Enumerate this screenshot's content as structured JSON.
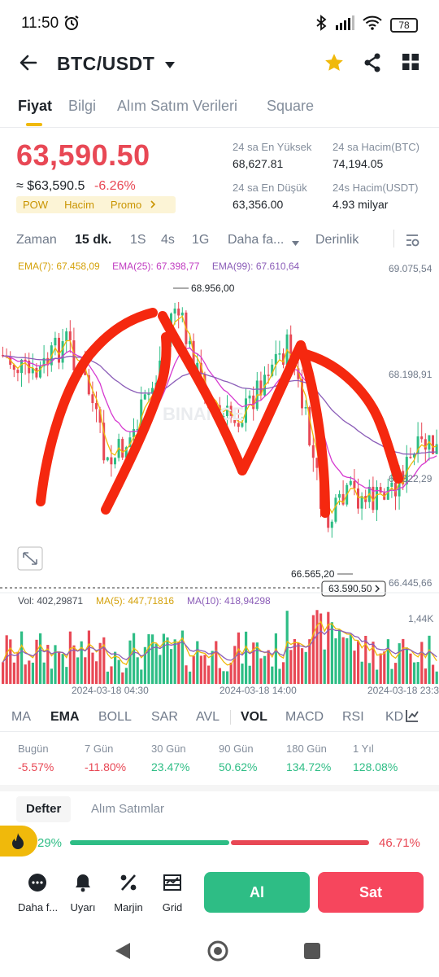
{
  "status": {
    "time": "11:50",
    "battery": "78"
  },
  "header": {
    "pair": "BTC/USDT"
  },
  "tabs": [
    "Fiyat",
    "Bilgi",
    "Alım Satım Verileri",
    "Square"
  ],
  "price": {
    "last": "63,590.50",
    "usd": "≈ $63,590.5",
    "change": "-6.26%",
    "tags": [
      "POW",
      "Hacim",
      "Promo"
    ]
  },
  "stats": {
    "high_label": "24 sa En Yüksek",
    "high": "68,627.81",
    "low_label": "24 sa En Düşük",
    "low": "63,356.00",
    "vol_btc_label": "24 sa Hacim(BTC)",
    "vol_btc": "74,194.05",
    "vol_usdt_label": "24s Hacim(USDT)",
    "vol_usdt": "4.93 milyar"
  },
  "timeframes": {
    "items": [
      "Zaman",
      "15 dk.",
      "1S",
      "4s",
      "1G",
      "Daha fa..."
    ],
    "depth": "Derinlik",
    "active": "15 dk."
  },
  "ema": {
    "e7": "EMA(7): 67.458,09",
    "e25": "EMA(25): 67.398,77",
    "e99": "EMA(99): 67.610,64"
  },
  "colors": {
    "ema7": "#f0b90b",
    "ema25": "#d63ad0",
    "ema99": "#8b5db8",
    "up": "#2ebd85",
    "down": "#e84855",
    "annotation": "#f5280f"
  },
  "chart_data": {
    "type": "candlestick",
    "y_ticks": [
      "69.075,54",
      "68.198,91",
      "67.322,29",
      "66.445,66"
    ],
    "high_label": "68.956,00",
    "low_label": "66.565,20",
    "last_price_tag": "63.590,50",
    "time_labels": [
      "2024-03-18 04:30",
      "2024-03-18 14:00",
      "2024-03-18 23:3"
    ],
    "volume": {
      "vol": "Vol: 402,29871",
      "ma5": "MA(5): 447,71816",
      "ma10": "MA(10): 418,94298",
      "max_tick": "1,44K"
    },
    "watermark": "BINANCE"
  },
  "indicators": {
    "items": [
      "MA",
      "EMA",
      "BOLL",
      "SAR",
      "AVL",
      "VOL",
      "MACD",
      "RSI",
      "KD"
    ],
    "active": [
      "EMA",
      "VOL"
    ]
  },
  "performance": [
    {
      "label": "Bugün",
      "value": "-5.57%",
      "dir": "red"
    },
    {
      "label": "7 Gün",
      "value": "-11.80%",
      "dir": "red"
    },
    {
      "label": "30 Gün",
      "value": "23.47%",
      "dir": "green"
    },
    {
      "label": "90 Gün",
      "value": "50.62%",
      "dir": "green"
    },
    {
      "label": "180 Gün",
      "value": "134.72%",
      "dir": "green"
    },
    {
      "label": "1 Yıl",
      "value": "128.08%",
      "dir": "green"
    }
  ],
  "book": {
    "tabs": [
      "Defter",
      "Alım Satımlar"
    ],
    "buy_pct": "29%",
    "sell_pct": "46.71%"
  },
  "bottom": {
    "more": "Daha f...",
    "alert": "Uyarı",
    "margin": "Marjin",
    "grid": "Grid",
    "buy": "Al",
    "sell": "Sat"
  }
}
